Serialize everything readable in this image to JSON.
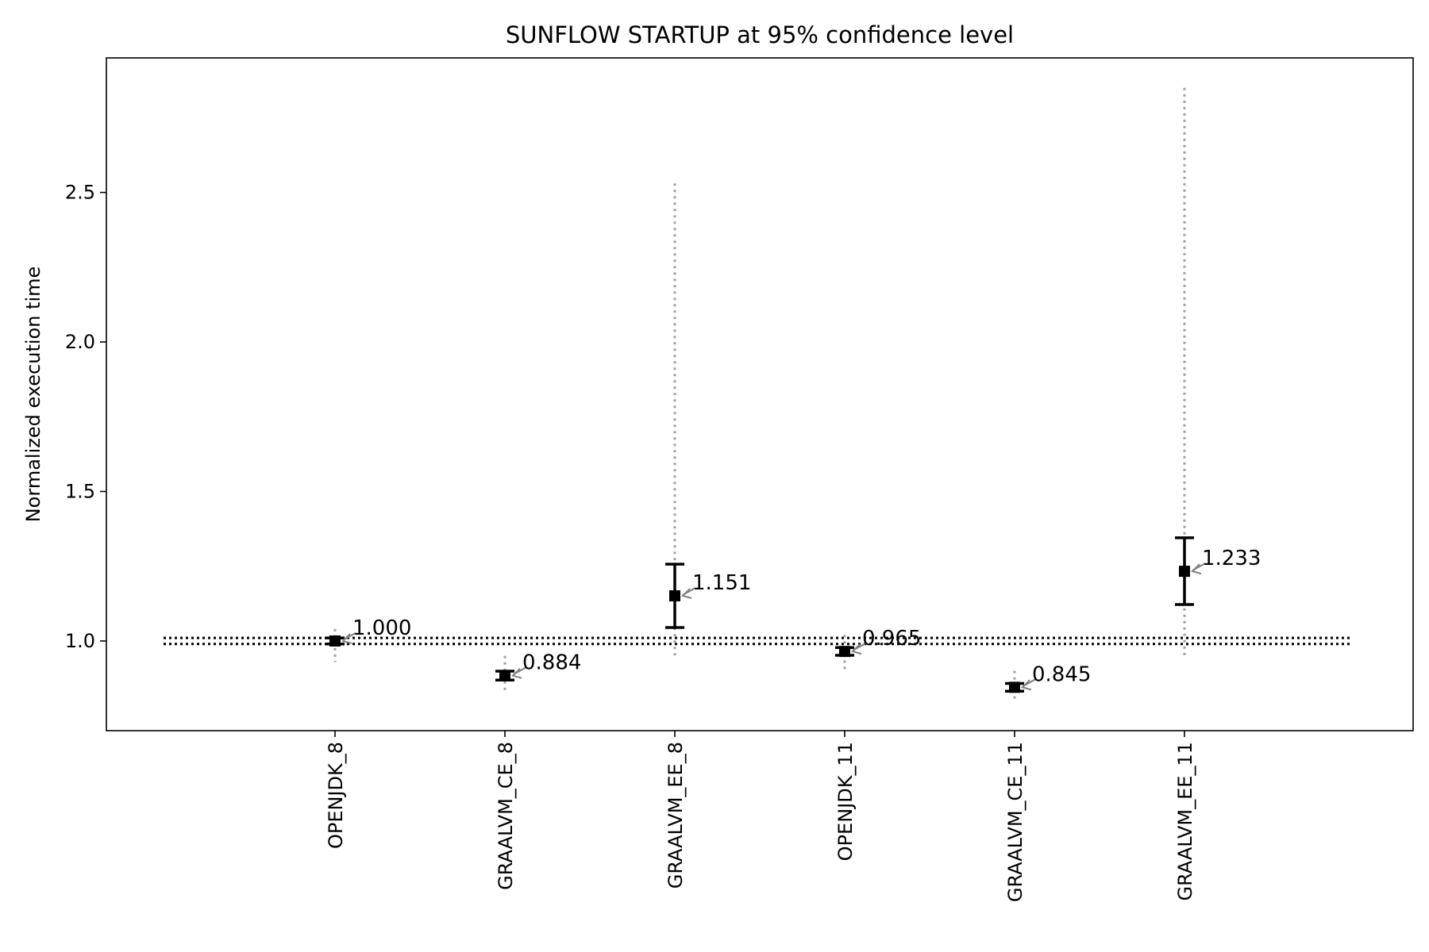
{
  "chart_data": {
    "type": "scatter",
    "title": "SUNFLOW STARTUP at 95% confidence level",
    "ylabel": "Normalized execution time",
    "xlabel": "",
    "categories": [
      "OPENJDK_8",
      "GRAALVM_CE_8",
      "GRAALVM_EE_8",
      "OPENJDK_11",
      "GRAALVM_CE_11",
      "GRAALVM_EE_11"
    ],
    "values": [
      1.0,
      0.884,
      1.151,
      0.965,
      0.845,
      1.233
    ],
    "value_labels": [
      "1.000",
      "0.884",
      "1.151",
      "0.965",
      "0.845",
      "1.233"
    ],
    "ci_low": [
      0.99,
      0.869,
      1.045,
      0.952,
      0.832,
      1.122
    ],
    "ci_high": [
      1.01,
      0.899,
      1.257,
      0.978,
      0.858,
      1.345
    ],
    "range_low": [
      0.93,
      0.83,
      0.95,
      0.9,
      0.8,
      0.95
    ],
    "range_high": [
      1.04,
      0.95,
      2.53,
      1.02,
      0.9,
      2.85
    ],
    "reference_band": [
      0.99,
      1.01
    ],
    "ylim": [
      0.7,
      2.95
    ],
    "yticks": [
      1.0,
      1.5,
      2.0,
      2.5
    ],
    "ytick_labels": [
      "1.0",
      "1.5",
      "2.0",
      "2.5"
    ],
    "grid": false,
    "colors": {
      "marker": "#000000",
      "range": "#a0a0a0",
      "arrow": "#808080",
      "reference": "#000000"
    }
  }
}
